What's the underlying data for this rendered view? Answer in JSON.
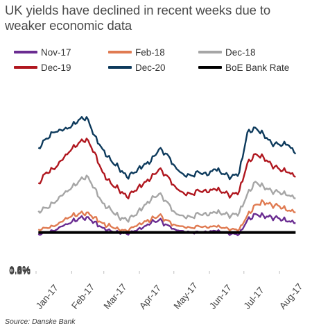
{
  "chart_data": {
    "type": "line",
    "title": "UK yields have declined in recent weeks due to weaker economic data",
    "source": "Source: Danske Bank",
    "ylim": [
      0,
      1.2
    ],
    "y_ticks": [
      "0.0%",
      "0.2%",
      "0.4%",
      "0.6%",
      "0.8%",
      "1.0%",
      "1.2%"
    ],
    "x_ticks": [
      "Jan-17",
      "Feb-17",
      "Mar-17",
      "Apr-17",
      "May-17",
      "Jun-17",
      "Jul-17",
      "Aug-17"
    ],
    "grid": false,
    "legend_position": "top",
    "x": [
      "2017-01-03",
      "2017-01-10",
      "2017-01-17",
      "2017-01-24",
      "2017-01-31",
      "2017-02-07",
      "2017-02-14",
      "2017-02-21",
      "2017-02-28",
      "2017-03-07",
      "2017-03-14",
      "2017-03-21",
      "2017-03-28",
      "2017-04-04",
      "2017-04-11",
      "2017-04-18",
      "2017-04-25",
      "2017-05-02",
      "2017-05-09",
      "2017-05-16",
      "2017-05-23",
      "2017-05-30",
      "2017-06-06",
      "2017-06-13",
      "2017-06-20",
      "2017-06-27",
      "2017-07-04",
      "2017-07-11",
      "2017-07-18",
      "2017-07-25",
      "2017-08-01",
      "2017-08-08",
      "2017-08-15"
    ],
    "series": [
      {
        "name": "Nov-17",
        "color": "#6a2c91",
        "values": [
          0.24,
          0.25,
          0.26,
          0.29,
          0.31,
          0.34,
          0.35,
          0.32,
          0.28,
          0.26,
          0.25,
          0.24,
          0.26,
          0.28,
          0.31,
          0.33,
          0.3,
          0.27,
          0.26,
          0.25,
          0.25,
          0.25,
          0.26,
          0.25,
          0.24,
          0.24,
          0.33,
          0.37,
          0.36,
          0.35,
          0.34,
          0.32,
          0.31
        ]
      },
      {
        "name": "Feb-18",
        "color": "#e07b52",
        "values": [
          0.27,
          0.28,
          0.29,
          0.32,
          0.35,
          0.37,
          0.38,
          0.35,
          0.31,
          0.29,
          0.27,
          0.26,
          0.29,
          0.31,
          0.33,
          0.36,
          0.33,
          0.3,
          0.29,
          0.28,
          0.29,
          0.28,
          0.29,
          0.28,
          0.27,
          0.27,
          0.36,
          0.43,
          0.45,
          0.43,
          0.42,
          0.39,
          0.38
        ]
      },
      {
        "name": "Dec-18",
        "color": "#a6a6a6",
        "values": [
          0.39,
          0.41,
          0.44,
          0.49,
          0.53,
          0.58,
          0.62,
          0.54,
          0.44,
          0.4,
          0.35,
          0.33,
          0.36,
          0.41,
          0.46,
          0.5,
          0.45,
          0.38,
          0.36,
          0.35,
          0.37,
          0.36,
          0.38,
          0.37,
          0.36,
          0.38,
          0.5,
          0.58,
          0.55,
          0.52,
          0.51,
          0.49,
          0.47
        ]
      },
      {
        "name": "Dec-19",
        "color": "#b0171f",
        "values": [
          0.57,
          0.64,
          0.66,
          0.72,
          0.78,
          0.83,
          0.86,
          0.77,
          0.64,
          0.57,
          0.53,
          0.48,
          0.52,
          0.56,
          0.6,
          0.66,
          0.62,
          0.55,
          0.51,
          0.5,
          0.52,
          0.51,
          0.53,
          0.51,
          0.49,
          0.52,
          0.7,
          0.76,
          0.74,
          0.69,
          0.66,
          0.64,
          0.61
        ]
      },
      {
        "name": "Dec-20",
        "color": "#0d3a5c",
        "values": [
          0.8,
          0.86,
          0.9,
          0.91,
          0.93,
          0.98,
          1.0,
          0.88,
          0.79,
          0.72,
          0.67,
          0.61,
          0.64,
          0.68,
          0.71,
          0.79,
          0.76,
          0.68,
          0.63,
          0.62,
          0.64,
          0.62,
          0.66,
          0.63,
          0.61,
          0.64,
          0.9,
          0.93,
          0.89,
          0.83,
          0.82,
          0.82,
          0.76
        ]
      },
      {
        "name": "BoE Bank Rate",
        "color": "#000000",
        "values": [
          0.25,
          0.25,
          0.25,
          0.25,
          0.25,
          0.25,
          0.25,
          0.25,
          0.25,
          0.25,
          0.25,
          0.25,
          0.25,
          0.25,
          0.25,
          0.25,
          0.25,
          0.25,
          0.25,
          0.25,
          0.25,
          0.25,
          0.25,
          0.25,
          0.25,
          0.25,
          0.25,
          0.25,
          0.25,
          0.25,
          0.25,
          0.25,
          0.25
        ]
      }
    ]
  }
}
